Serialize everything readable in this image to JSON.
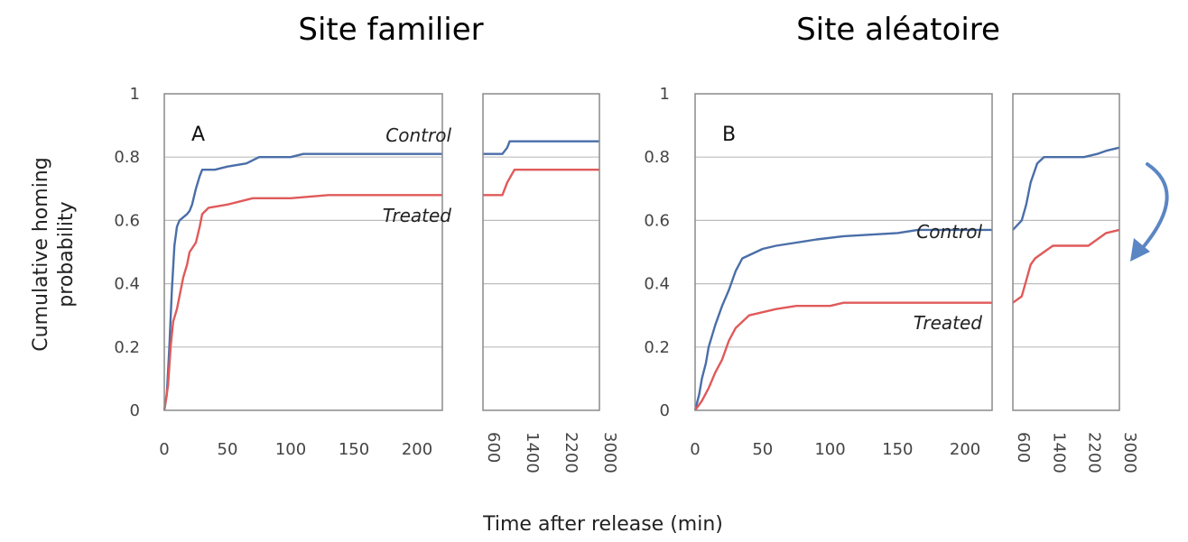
{
  "titles": [
    "Site familier",
    "Site aléatoire"
  ],
  "xlabel": "Time after release (min)",
  "ylabel_lines": [
    "Cumulative homing",
    "probability"
  ],
  "colors": {
    "control": "#4a6ea8",
    "treated": "#e05a5a",
    "arrow": "#5b86c4"
  },
  "chart_data": [
    {
      "type": "line",
      "title": "Site familier",
      "panel_label": "A",
      "xlabel": "Time after release (min)",
      "ylabel": "Cumulative homing probability",
      "ylim": [
        0,
        1
      ],
      "yticks": [
        "0",
        "0.2",
        "0.4",
        "0.6",
        "0.8",
        "1"
      ],
      "grid": true,
      "left_axis": {
        "xlim": [
          0,
          220
        ],
        "xticks": [
          "0",
          "50",
          "100",
          "150",
          "200"
        ]
      },
      "right_axis": {
        "xlim": [
          600,
          3000
        ],
        "xticks": [
          "600",
          "1400",
          "2200",
          "3000"
        ]
      },
      "series": [
        {
          "name": "Control",
          "x": [
            0,
            2,
            4,
            6,
            8,
            10,
            12,
            15,
            18,
            20,
            22,
            25,
            28,
            30,
            40,
            50,
            65,
            75,
            100,
            110,
            200,
            220,
            600,
            1000,
            1100,
            1150,
            3000
          ],
          "y": [
            0,
            0.05,
            0.2,
            0.38,
            0.52,
            0.58,
            0.6,
            0.61,
            0.62,
            0.63,
            0.65,
            0.7,
            0.74,
            0.76,
            0.76,
            0.77,
            0.78,
            0.8,
            0.8,
            0.81,
            0.81,
            0.81,
            0.81,
            0.81,
            0.83,
            0.85,
            0.85
          ]
        },
        {
          "name": "Treated",
          "x": [
            0,
            3,
            5,
            7,
            10,
            12,
            15,
            18,
            20,
            25,
            28,
            30,
            35,
            50,
            60,
            70,
            100,
            130,
            200,
            220,
            600,
            1000,
            1100,
            1250,
            1400,
            3000
          ],
          "y": [
            0,
            0.08,
            0.2,
            0.28,
            0.32,
            0.36,
            0.42,
            0.46,
            0.5,
            0.53,
            0.58,
            0.62,
            0.64,
            0.65,
            0.66,
            0.67,
            0.67,
            0.68,
            0.68,
            0.68,
            0.68,
            0.68,
            0.72,
            0.76,
            0.76,
            0.76
          ]
        }
      ]
    },
    {
      "type": "line",
      "title": "Site aléatoire",
      "panel_label": "B",
      "xlabel": "Time after release (min)",
      "ylabel": "Cumulative homing probability",
      "ylim": [
        0,
        1
      ],
      "yticks": [
        "0",
        "0.2",
        "0.4",
        "0.6",
        "0.8",
        "1"
      ],
      "grid": true,
      "left_axis": {
        "xlim": [
          0,
          220
        ],
        "xticks": [
          "0",
          "50",
          "100",
          "150",
          "200"
        ]
      },
      "right_axis": {
        "xlim": [
          600,
          3000
        ],
        "xticks": [
          "600",
          "1400",
          "2200",
          "3000"
        ]
      },
      "series": [
        {
          "name": "Control",
          "x": [
            0,
            3,
            5,
            8,
            10,
            15,
            20,
            25,
            30,
            35,
            40,
            50,
            60,
            75,
            90,
            110,
            150,
            165,
            200,
            220,
            600,
            800,
            900,
            1000,
            1150,
            1300,
            2200,
            2500,
            2700,
            3000
          ],
          "y": [
            0,
            0.05,
            0.1,
            0.15,
            0.2,
            0.27,
            0.33,
            0.38,
            0.44,
            0.48,
            0.49,
            0.51,
            0.52,
            0.53,
            0.54,
            0.55,
            0.56,
            0.57,
            0.57,
            0.57,
            0.57,
            0.6,
            0.65,
            0.72,
            0.78,
            0.8,
            0.8,
            0.81,
            0.82,
            0.83
          ]
        },
        {
          "name": "Treated",
          "x": [
            0,
            5,
            10,
            15,
            20,
            25,
            30,
            35,
            40,
            50,
            60,
            75,
            100,
            110,
            150,
            200,
            220,
            600,
            800,
            900,
            1000,
            1100,
            1300,
            1500,
            2300,
            2500,
            2700,
            3000
          ],
          "y": [
            0,
            0.03,
            0.07,
            0.12,
            0.16,
            0.22,
            0.26,
            0.28,
            0.3,
            0.31,
            0.32,
            0.33,
            0.33,
            0.34,
            0.34,
            0.34,
            0.34,
            0.34,
            0.36,
            0.41,
            0.46,
            0.48,
            0.5,
            0.52,
            0.52,
            0.54,
            0.56,
            0.57
          ]
        }
      ]
    }
  ]
}
